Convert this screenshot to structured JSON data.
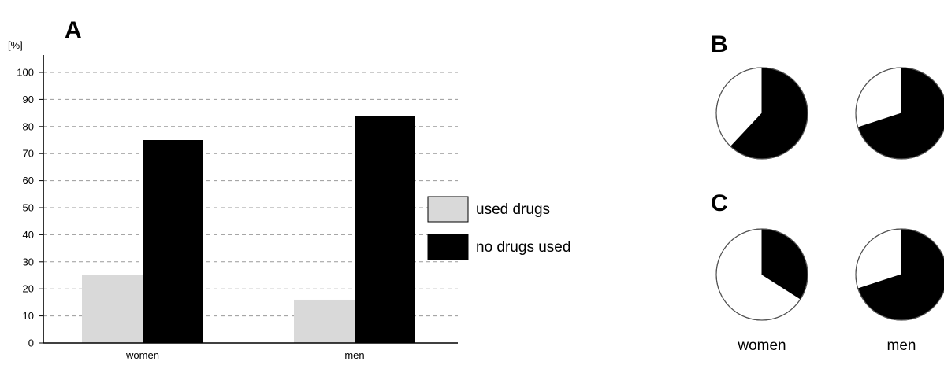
{
  "chart_data": [
    {
      "panel": "A",
      "type": "bar",
      "title": "",
      "ylabel": "[%]",
      "xlabel": "",
      "categories": [
        "women",
        "men"
      ],
      "ylim": [
        0,
        100
      ],
      "yticks": [
        0,
        10,
        20,
        30,
        40,
        50,
        60,
        70,
        80,
        90,
        100
      ],
      "grid": true,
      "legend_position": "right",
      "series": [
        {
          "name": "used drugs",
          "color": "#d9d9d9",
          "values": [
            25,
            16
          ]
        },
        {
          "name": "no drugs used",
          "color": "#000000",
          "values": [
            75,
            84
          ]
        }
      ]
    },
    {
      "panel": "B",
      "type": "pie",
      "categories": [
        "women",
        "men"
      ],
      "slice_names": [
        "used drugs",
        "no drugs used"
      ],
      "colors": [
        "#ffffff",
        "#000000"
      ],
      "values": [
        [
          38,
          62
        ],
        [
          30,
          70
        ]
      ]
    },
    {
      "panel": "C",
      "type": "pie",
      "categories": [
        "women",
        "men"
      ],
      "slice_names": [
        "used drugs",
        "no drugs used"
      ],
      "colors": [
        "#ffffff",
        "#000000"
      ],
      "values": [
        [
          66,
          34
        ],
        [
          30,
          70
        ]
      ]
    }
  ]
}
